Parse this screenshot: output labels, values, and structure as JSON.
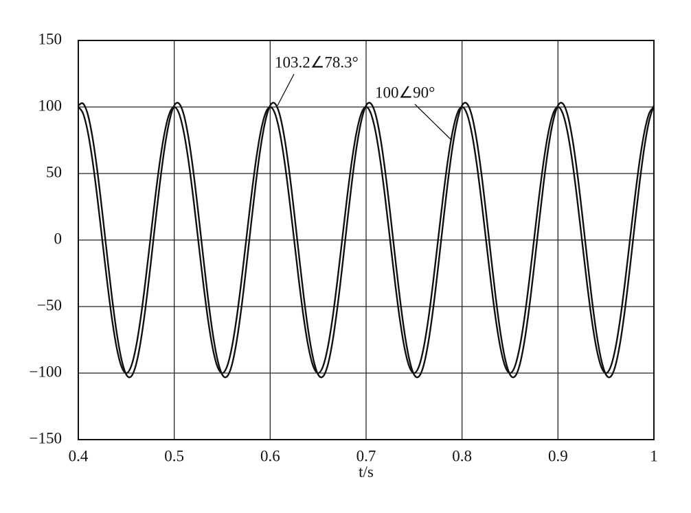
{
  "chart_data": {
    "type": "line",
    "xlabel": "t/s",
    "x": [
      0.4,
      0.405,
      0.41,
      0.415,
      0.42,
      0.425,
      0.43,
      0.435,
      0.44,
      0.445,
      0.45,
      0.455,
      0.46,
      0.465,
      0.47,
      0.475,
      0.48,
      0.485,
      0.49,
      0.495,
      0.5,
      0.505,
      0.51,
      0.515,
      0.52,
      0.525,
      0.53,
      0.535,
      0.54,
      0.545,
      0.55,
      0.555,
      0.56,
      0.565,
      0.57,
      0.575,
      0.58,
      0.585,
      0.59,
      0.595,
      0.6,
      0.605,
      0.61,
      0.615,
      0.62,
      0.625,
      0.63,
      0.635,
      0.64,
      0.645,
      0.65,
      0.655,
      0.66,
      0.665,
      0.67,
      0.675,
      0.68,
      0.685,
      0.69,
      0.695,
      0.7,
      0.705,
      0.71,
      0.715,
      0.72,
      0.725,
      0.73,
      0.735,
      0.74,
      0.745,
      0.75,
      0.755,
      0.76,
      0.765,
      0.77,
      0.775,
      0.78,
      0.785,
      0.79,
      0.795,
      0.8,
      0.805,
      0.81,
      0.815,
      0.82,
      0.825,
      0.83,
      0.835,
      0.84,
      0.845,
      0.85,
      0.855,
      0.86,
      0.865,
      0.87,
      0.875,
      0.88,
      0.885,
      0.89,
      0.895,
      0.9,
      0.905,
      0.91,
      0.915,
      0.92,
      0.925,
      0.93,
      0.935,
      0.94,
      0.945,
      0.95,
      0.955,
      0.96,
      0.965,
      0.97,
      0.975,
      0.98,
      0.985,
      0.99,
      0.995,
      1
    ],
    "series": [
      {
        "name": "100∠90°",
        "color": "#111111",
        "values": [
          100,
          95.1,
          80.9,
          58.8,
          30.9,
          0,
          -30.9,
          -58.8,
          -80.9,
          -95.1,
          -100,
          -95.1,
          -80.9,
          -58.8,
          -30.9,
          0,
          30.9,
          58.8,
          80.9,
          95.1,
          100,
          95.1,
          80.9,
          58.8,
          30.9,
          0,
          -30.9,
          -58.8,
          -80.9,
          -95.1,
          -100,
          -95.1,
          -80.9,
          -58.8,
          -30.9,
          0,
          30.9,
          58.8,
          80.9,
          95.1,
          100,
          95.1,
          80.9,
          58.8,
          30.9,
          0,
          -30.9,
          -58.8,
          -80.9,
          -95.1,
          -100,
          -95.1,
          -80.9,
          -58.8,
          -30.9,
          0,
          30.9,
          58.8,
          80.9,
          95.1,
          100,
          95.1,
          80.9,
          58.8,
          30.9,
          0,
          -30.9,
          -58.8,
          -80.9,
          -95.1,
          -100,
          -95.1,
          -80.9,
          -58.8,
          -30.9,
          0,
          30.9,
          58.8,
          80.9,
          95.1,
          100,
          95.1,
          80.9,
          58.8,
          30.9,
          0,
          -30.9,
          -58.8,
          -80.9,
          -95.1,
          -100,
          -95.1,
          -80.9,
          -58.8,
          -30.9,
          0,
          30.9,
          58.8,
          80.9,
          95.1,
          100,
          95.1,
          80.9,
          58.8,
          30.9,
          0,
          -30.9,
          -58.8,
          -80.9,
          -95.1,
          -100,
          -95.1,
          -80.9,
          -58.8,
          -30.9,
          0,
          30.9,
          58.8,
          80.9,
          95.1,
          100
        ]
      },
      {
        "name": "103.2∠78.3°",
        "color": "#111111",
        "values": [
          101.1,
          102.6,
          94.1,
          76.3,
          51.1,
          20.9,
          -11.3,
          -42.5,
          -69.5,
          -89.6,
          -101.1,
          -102.6,
          -94.1,
          -76.3,
          -51.1,
          -20.9,
          11.3,
          42.5,
          69.5,
          89.6,
          101.1,
          102.6,
          94.1,
          76.3,
          51.1,
          20.9,
          -11.3,
          -42.5,
          -69.5,
          -89.6,
          -101.1,
          -102.6,
          -94.1,
          -76.3,
          -51.1,
          -20.9,
          11.3,
          42.5,
          69.5,
          89.6,
          101.1,
          102.6,
          94.1,
          76.3,
          51.1,
          20.9,
          -11.3,
          -42.5,
          -69.5,
          -89.6,
          -101.1,
          -102.6,
          -94.1,
          -76.3,
          -51.1,
          -20.9,
          11.3,
          42.5,
          69.5,
          89.6,
          101.1,
          102.6,
          94.1,
          76.3,
          51.1,
          20.9,
          -11.3,
          -42.5,
          -69.5,
          -89.6,
          -101.1,
          -102.6,
          -94.1,
          -76.3,
          -51.1,
          -20.9,
          11.3,
          42.5,
          69.5,
          89.6,
          101.1,
          102.6,
          94.1,
          76.3,
          51.1,
          20.9,
          -11.3,
          -42.5,
          -69.5,
          -89.6,
          -101.1,
          -102.6,
          -94.1,
          -76.3,
          -51.1,
          -20.9,
          11.3,
          42.5,
          69.5,
          89.6,
          101.1,
          102.6,
          94.1,
          76.3,
          51.1,
          20.9,
          -11.3,
          -42.5,
          -69.5,
          -89.6,
          -101.1,
          -102.6,
          -94.1,
          -76.3,
          -51.1,
          -20.9,
          11.3,
          42.5,
          69.5,
          89.6,
          101.1
        ]
      }
    ],
    "xlim": [
      0.4,
      1
    ],
    "xticks": [
      0.4,
      0.5,
      0.6,
      0.7,
      0.8,
      0.9,
      1
    ],
    "ylim": [
      -150,
      150
    ],
    "yticks": [
      {
        "value": -150,
        "label": "−150"
      },
      {
        "value": -100,
        "label": "−100"
      },
      {
        "value": -50,
        "label": "−50"
      },
      0,
      50,
      100,
      150
    ],
    "grid": true
  }
}
